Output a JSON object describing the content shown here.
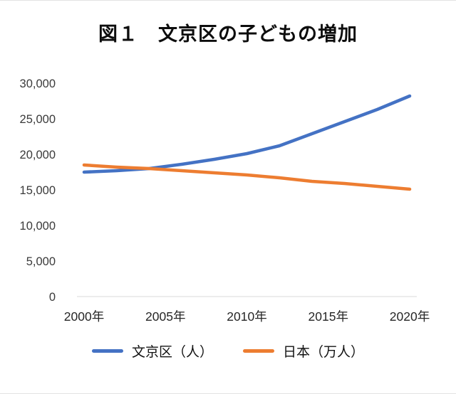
{
  "chart_data": {
    "type": "line",
    "title": "図１　文京区の子どもの増加",
    "x": [
      2000,
      2002,
      2004,
      2006,
      2008,
      2010,
      2012,
      2014,
      2016,
      2018,
      2020
    ],
    "series": [
      {
        "name": "文京区（人）",
        "color": "#4472C4",
        "values": [
          17500,
          17700,
          18000,
          18600,
          19300,
          20100,
          21200,
          22900,
          24600,
          26300,
          28200
        ]
      },
      {
        "name": "日本（万人）",
        "color": "#ED7D31",
        "values": [
          18500,
          18200,
          18000,
          17700,
          17400,
          17100,
          16700,
          16200,
          15900,
          15500,
          15100
        ]
      }
    ],
    "xticks": [
      2000,
      2005,
      2010,
      2015,
      2020
    ],
    "xtick_labels": [
      "2000年",
      "2005年",
      "2010年",
      "2015年",
      "2020年"
    ],
    "yticks": [
      0,
      5000,
      10000,
      15000,
      20000,
      25000,
      30000
    ],
    "ytick_labels": [
      "0",
      "5,000",
      "10,000",
      "15,000",
      "20,000",
      "25,000",
      "30,000"
    ],
    "ylim": [
      0,
      30000
    ],
    "grid": false,
    "legend_position": "bottom"
  }
}
